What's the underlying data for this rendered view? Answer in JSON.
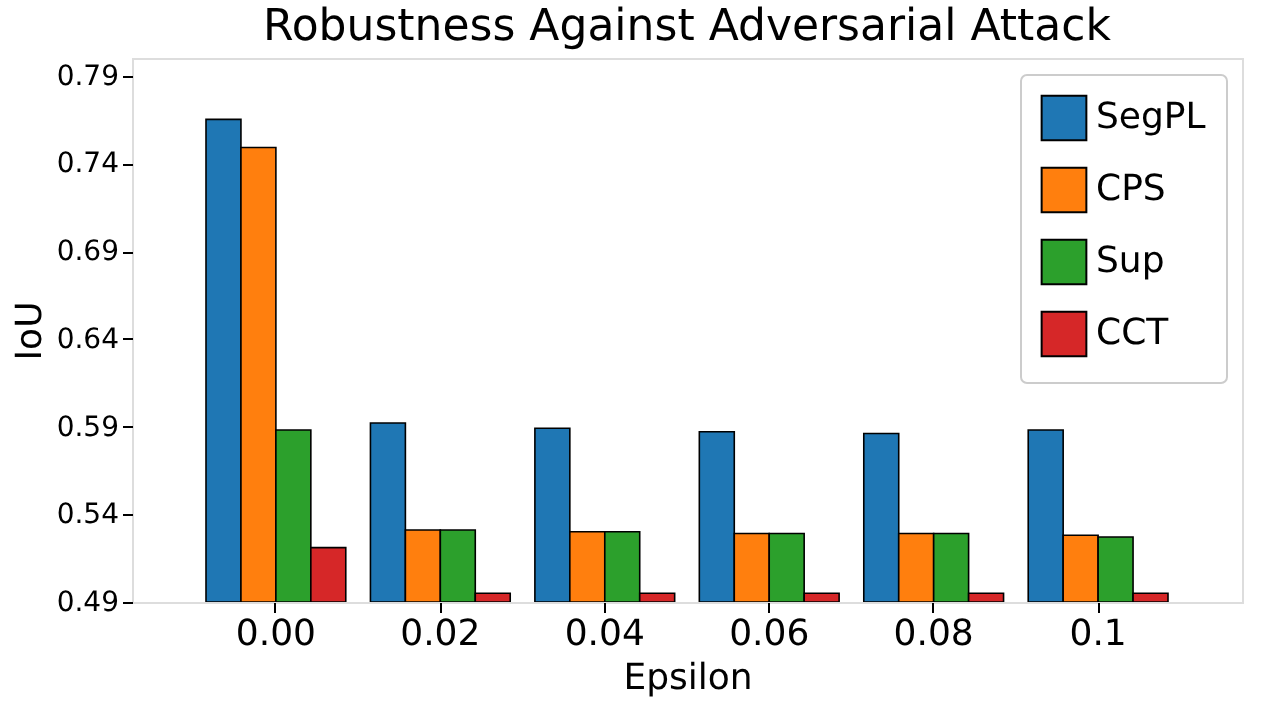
{
  "chart_data": {
    "type": "bar",
    "title": "Robustness Against Adversarial Attack",
    "xlabel": "Epsilon",
    "ylabel": "IoU",
    "categories": [
      "0.00",
      "0.02",
      "0.04",
      "0.06",
      "0.08",
      "0.1"
    ],
    "series": [
      {
        "name": "SegPL",
        "color": "#1f77b4",
        "values": [
          0.765,
          0.592,
          0.589,
          0.587,
          0.586,
          0.588
        ]
      },
      {
        "name": "CPS",
        "color": "#ff7f0e",
        "values": [
          0.749,
          0.531,
          0.53,
          0.529,
          0.529,
          0.528
        ]
      },
      {
        "name": "Sup",
        "color": "#2ca02c",
        "values": [
          0.588,
          0.531,
          0.53,
          0.529,
          0.529,
          0.527
        ]
      },
      {
        "name": "CCT",
        "color": "#d62728",
        "values": [
          0.521,
          0.495,
          0.495,
          0.495,
          0.495,
          0.495
        ]
      }
    ],
    "ylim": [
      0.49,
      0.8
    ],
    "yticks": [
      0.49,
      0.54,
      0.59,
      0.64,
      0.69,
      0.74,
      0.79
    ],
    "grid": false,
    "legend": "top right"
  }
}
